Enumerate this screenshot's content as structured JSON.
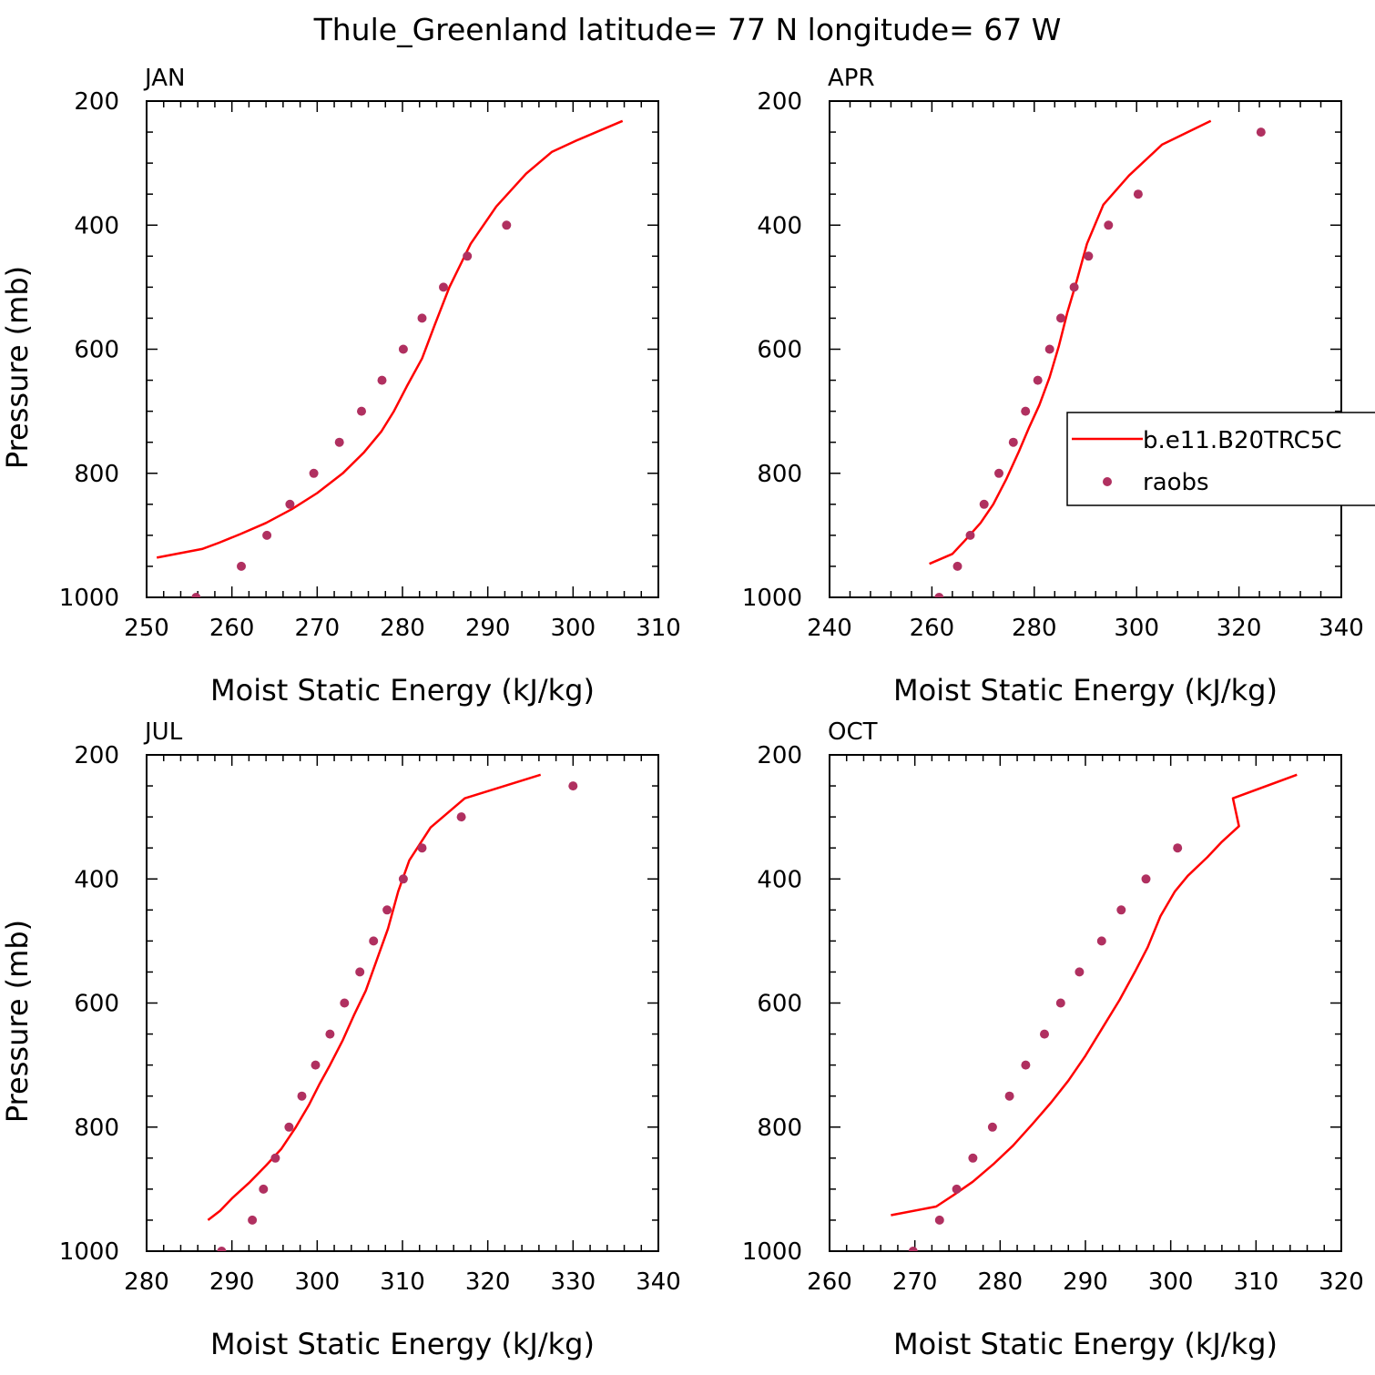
{
  "figure": {
    "title": "Thule_Greenland  latitude= 77 N longitude= 67 W",
    "line_color": "#ff0000",
    "marker_color": "#b03060",
    "legend": {
      "entries": [
        {
          "label": "b.e11.B20TRC5C",
          "style": "line"
        },
        {
          "label": "raobs",
          "style": "marker"
        }
      ]
    }
  },
  "chart_data": [
    {
      "type": "line",
      "title": "JAN",
      "xlabel": "Moist Static Energy (kJ/kg)",
      "ylabel": "Pressure (mb)",
      "xlim": [
        250,
        310
      ],
      "ylim": [
        1000,
        200
      ],
      "xticks": [
        250,
        260,
        270,
        280,
        290,
        300,
        310
      ],
      "yticks": [
        200,
        400,
        600,
        800,
        1000
      ],
      "series": [
        {
          "style": "line",
          "points": [
            [
              251.2,
              936
            ],
            [
              256.5,
              922
            ],
            [
              258.5,
              912
            ],
            [
              261,
              898
            ],
            [
              264,
              880
            ],
            [
              267,
              858
            ],
            [
              270,
              832
            ],
            [
              273,
              800
            ],
            [
              275.5,
              766
            ],
            [
              277.5,
              733
            ],
            [
              279,
              700
            ],
            [
              280.5,
              660
            ],
            [
              282.3,
              615
            ],
            [
              283.8,
              560
            ],
            [
              285.5,
              500
            ],
            [
              288,
              430
            ],
            [
              291,
              370
            ],
            [
              294.5,
              317
            ],
            [
              297.5,
              282
            ],
            [
              300.5,
              263
            ],
            [
              305.8,
              232
            ]
          ]
        },
        {
          "style": "marker",
          "points": [
            [
              255.8,
              1000
            ],
            [
              261.1,
              950
            ],
            [
              264.1,
              900
            ],
            [
              266.8,
              850
            ],
            [
              269.6,
              800
            ],
            [
              272.6,
              750
            ],
            [
              275.2,
              700
            ],
            [
              277.6,
              650
            ],
            [
              280.1,
              600
            ],
            [
              282.3,
              550
            ],
            [
              284.8,
              500
            ],
            [
              287.6,
              450
            ],
            [
              292.2,
              400
            ]
          ]
        }
      ]
    },
    {
      "type": "line",
      "title": "APR",
      "xlabel": "Moist Static Energy (kJ/kg)",
      "ylabel": "",
      "xlim": [
        240,
        340
      ],
      "ylim": [
        1000,
        200
      ],
      "xticks": [
        240,
        260,
        280,
        300,
        320,
        340
      ],
      "yticks": [
        200,
        400,
        600,
        800,
        1000
      ],
      "show_legend": true,
      "series": [
        {
          "style": "line",
          "points": [
            [
              259.5,
              946
            ],
            [
              264,
              930
            ],
            [
              266.5,
              908
            ],
            [
              269.5,
              880
            ],
            [
              272,
              850
            ],
            [
              274.5,
              810
            ],
            [
              277,
              765
            ],
            [
              279,
              726
            ],
            [
              281,
              690
            ],
            [
              283,
              645
            ],
            [
              284.8,
              595
            ],
            [
              286.5,
              540
            ],
            [
              288.3,
              490
            ],
            [
              290.3,
              430
            ],
            [
              293.5,
              367
            ],
            [
              298.5,
              320
            ],
            [
              305,
              270
            ],
            [
              314.5,
              232
            ]
          ]
        },
        {
          "style": "marker",
          "points": [
            [
              261.4,
              1000
            ],
            [
              265,
              950
            ],
            [
              267.5,
              900
            ],
            [
              270.2,
              850
            ],
            [
              273.1,
              800
            ],
            [
              275.9,
              750
            ],
            [
              278.3,
              700
            ],
            [
              280.7,
              650
            ],
            [
              283,
              600
            ],
            [
              285.2,
              550
            ],
            [
              287.8,
              500
            ],
            [
              290.6,
              450
            ],
            [
              294.5,
              400
            ],
            [
              300.3,
              350
            ],
            [
              324.3,
              250
            ]
          ]
        }
      ]
    },
    {
      "type": "line",
      "title": "JUL",
      "xlabel": "Moist Static Energy (kJ/kg)",
      "ylabel": "Pressure (mb)",
      "xlim": [
        280,
        340
      ],
      "ylim": [
        1000,
        200
      ],
      "xticks": [
        280,
        290,
        300,
        310,
        320,
        330,
        340
      ],
      "yticks": [
        200,
        400,
        600,
        800,
        1000
      ],
      "series": [
        {
          "style": "line",
          "points": [
            [
              287.2,
              950
            ],
            [
              288.6,
              935
            ],
            [
              290,
              915
            ],
            [
              292,
              890
            ],
            [
              294,
              862
            ],
            [
              295.8,
              835
            ],
            [
              297.5,
              800
            ],
            [
              299,
              765
            ],
            [
              300.3,
              730
            ],
            [
              301.5,
              700
            ],
            [
              303,
              660
            ],
            [
              304.3,
              620
            ],
            [
              305.7,
              580
            ],
            [
              307,
              530
            ],
            [
              308.3,
              480
            ],
            [
              309.5,
              420
            ],
            [
              310.8,
              370
            ],
            [
              313.3,
              317
            ],
            [
              317.3,
              270
            ],
            [
              326.2,
              232
            ]
          ]
        },
        {
          "style": "marker",
          "points": [
            [
              288.8,
              1000
            ],
            [
              292.4,
              950
            ],
            [
              293.7,
              900
            ],
            [
              295.1,
              850
            ],
            [
              296.7,
              800
            ],
            [
              298.2,
              750
            ],
            [
              299.8,
              700
            ],
            [
              301.5,
              650
            ],
            [
              303.2,
              600
            ],
            [
              305,
              550
            ],
            [
              306.6,
              500
            ],
            [
              308.2,
              450
            ],
            [
              310.1,
              400
            ],
            [
              312.3,
              350
            ],
            [
              316.9,
              300
            ],
            [
              330,
              250
            ]
          ]
        }
      ]
    },
    {
      "type": "line",
      "title": "OCT",
      "xlabel": "Moist Static Energy (kJ/kg)",
      "ylabel": "",
      "xlim": [
        260,
        320
      ],
      "ylim": [
        1000,
        200
      ],
      "xticks": [
        260,
        270,
        280,
        290,
        300,
        310,
        320
      ],
      "yticks": [
        200,
        400,
        600,
        800,
        1000
      ],
      "series": [
        {
          "style": "line",
          "points": [
            [
              267.2,
              942
            ],
            [
              272.5,
              928
            ],
            [
              274.5,
              910
            ],
            [
              276.8,
              888
            ],
            [
              279.2,
              860
            ],
            [
              281.5,
              830
            ],
            [
              283.8,
              795
            ],
            [
              286,
              760
            ],
            [
              288,
              725
            ],
            [
              290,
              685
            ],
            [
              292,
              640
            ],
            [
              294,
              595
            ],
            [
              295.8,
              550
            ],
            [
              297.3,
              510
            ],
            [
              298.8,
              460
            ],
            [
              300.5,
              420
            ],
            [
              302,
              395
            ],
            [
              304.3,
              365
            ],
            [
              306,
              340
            ],
            [
              308,
              315
            ],
            [
              307.3,
              270
            ],
            [
              314.8,
              232
            ]
          ]
        },
        {
          "style": "marker",
          "points": [
            [
              269.8,
              1000
            ],
            [
              272.9,
              950
            ],
            [
              274.9,
              900
            ],
            [
              276.8,
              850
            ],
            [
              279.1,
              800
            ],
            [
              281.1,
              750
            ],
            [
              283,
              700
            ],
            [
              285.2,
              650
            ],
            [
              287.1,
              600
            ],
            [
              289.3,
              550
            ],
            [
              291.9,
              500
            ],
            [
              294.2,
              450
            ],
            [
              297.1,
              400
            ],
            [
              300.8,
              350
            ]
          ]
        }
      ]
    }
  ]
}
